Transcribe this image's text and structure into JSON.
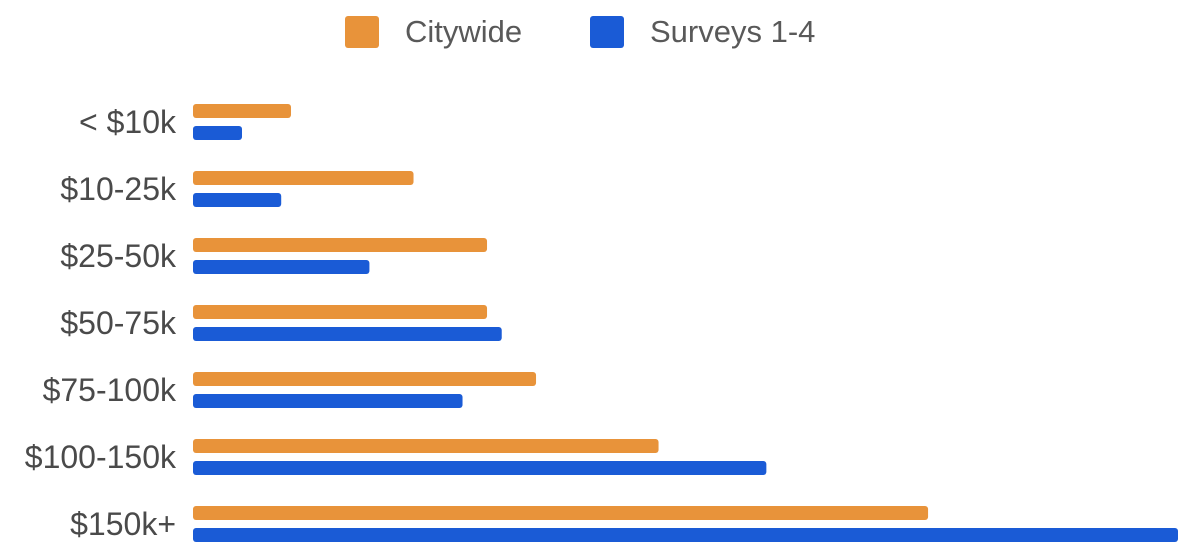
{
  "chart_data": {
    "type": "bar",
    "orientation": "horizontal",
    "title": "",
    "xlabel": "",
    "ylabel": "",
    "categories": [
      "< $10k",
      "$10-25k",
      "$25-50k",
      "$50-75k",
      "$75-100k",
      "$100-150k",
      "$150k+"
    ],
    "series": [
      {
        "name": "Citywide",
        "color": "#E8933A",
        "values": [
          2.0,
          4.5,
          6.0,
          6.0,
          7.0,
          9.5,
          15.0
        ]
      },
      {
        "name": "Surveys 1-4",
        "color": "#1A5BD6",
        "values": [
          1.0,
          1.8,
          3.6,
          6.3,
          5.5,
          11.7,
          20.1
        ]
      }
    ],
    "xlim": [
      0,
      20.1
    ],
    "grid": false,
    "axis_values_shown": false,
    "legend": {
      "position": "top-center"
    }
  }
}
